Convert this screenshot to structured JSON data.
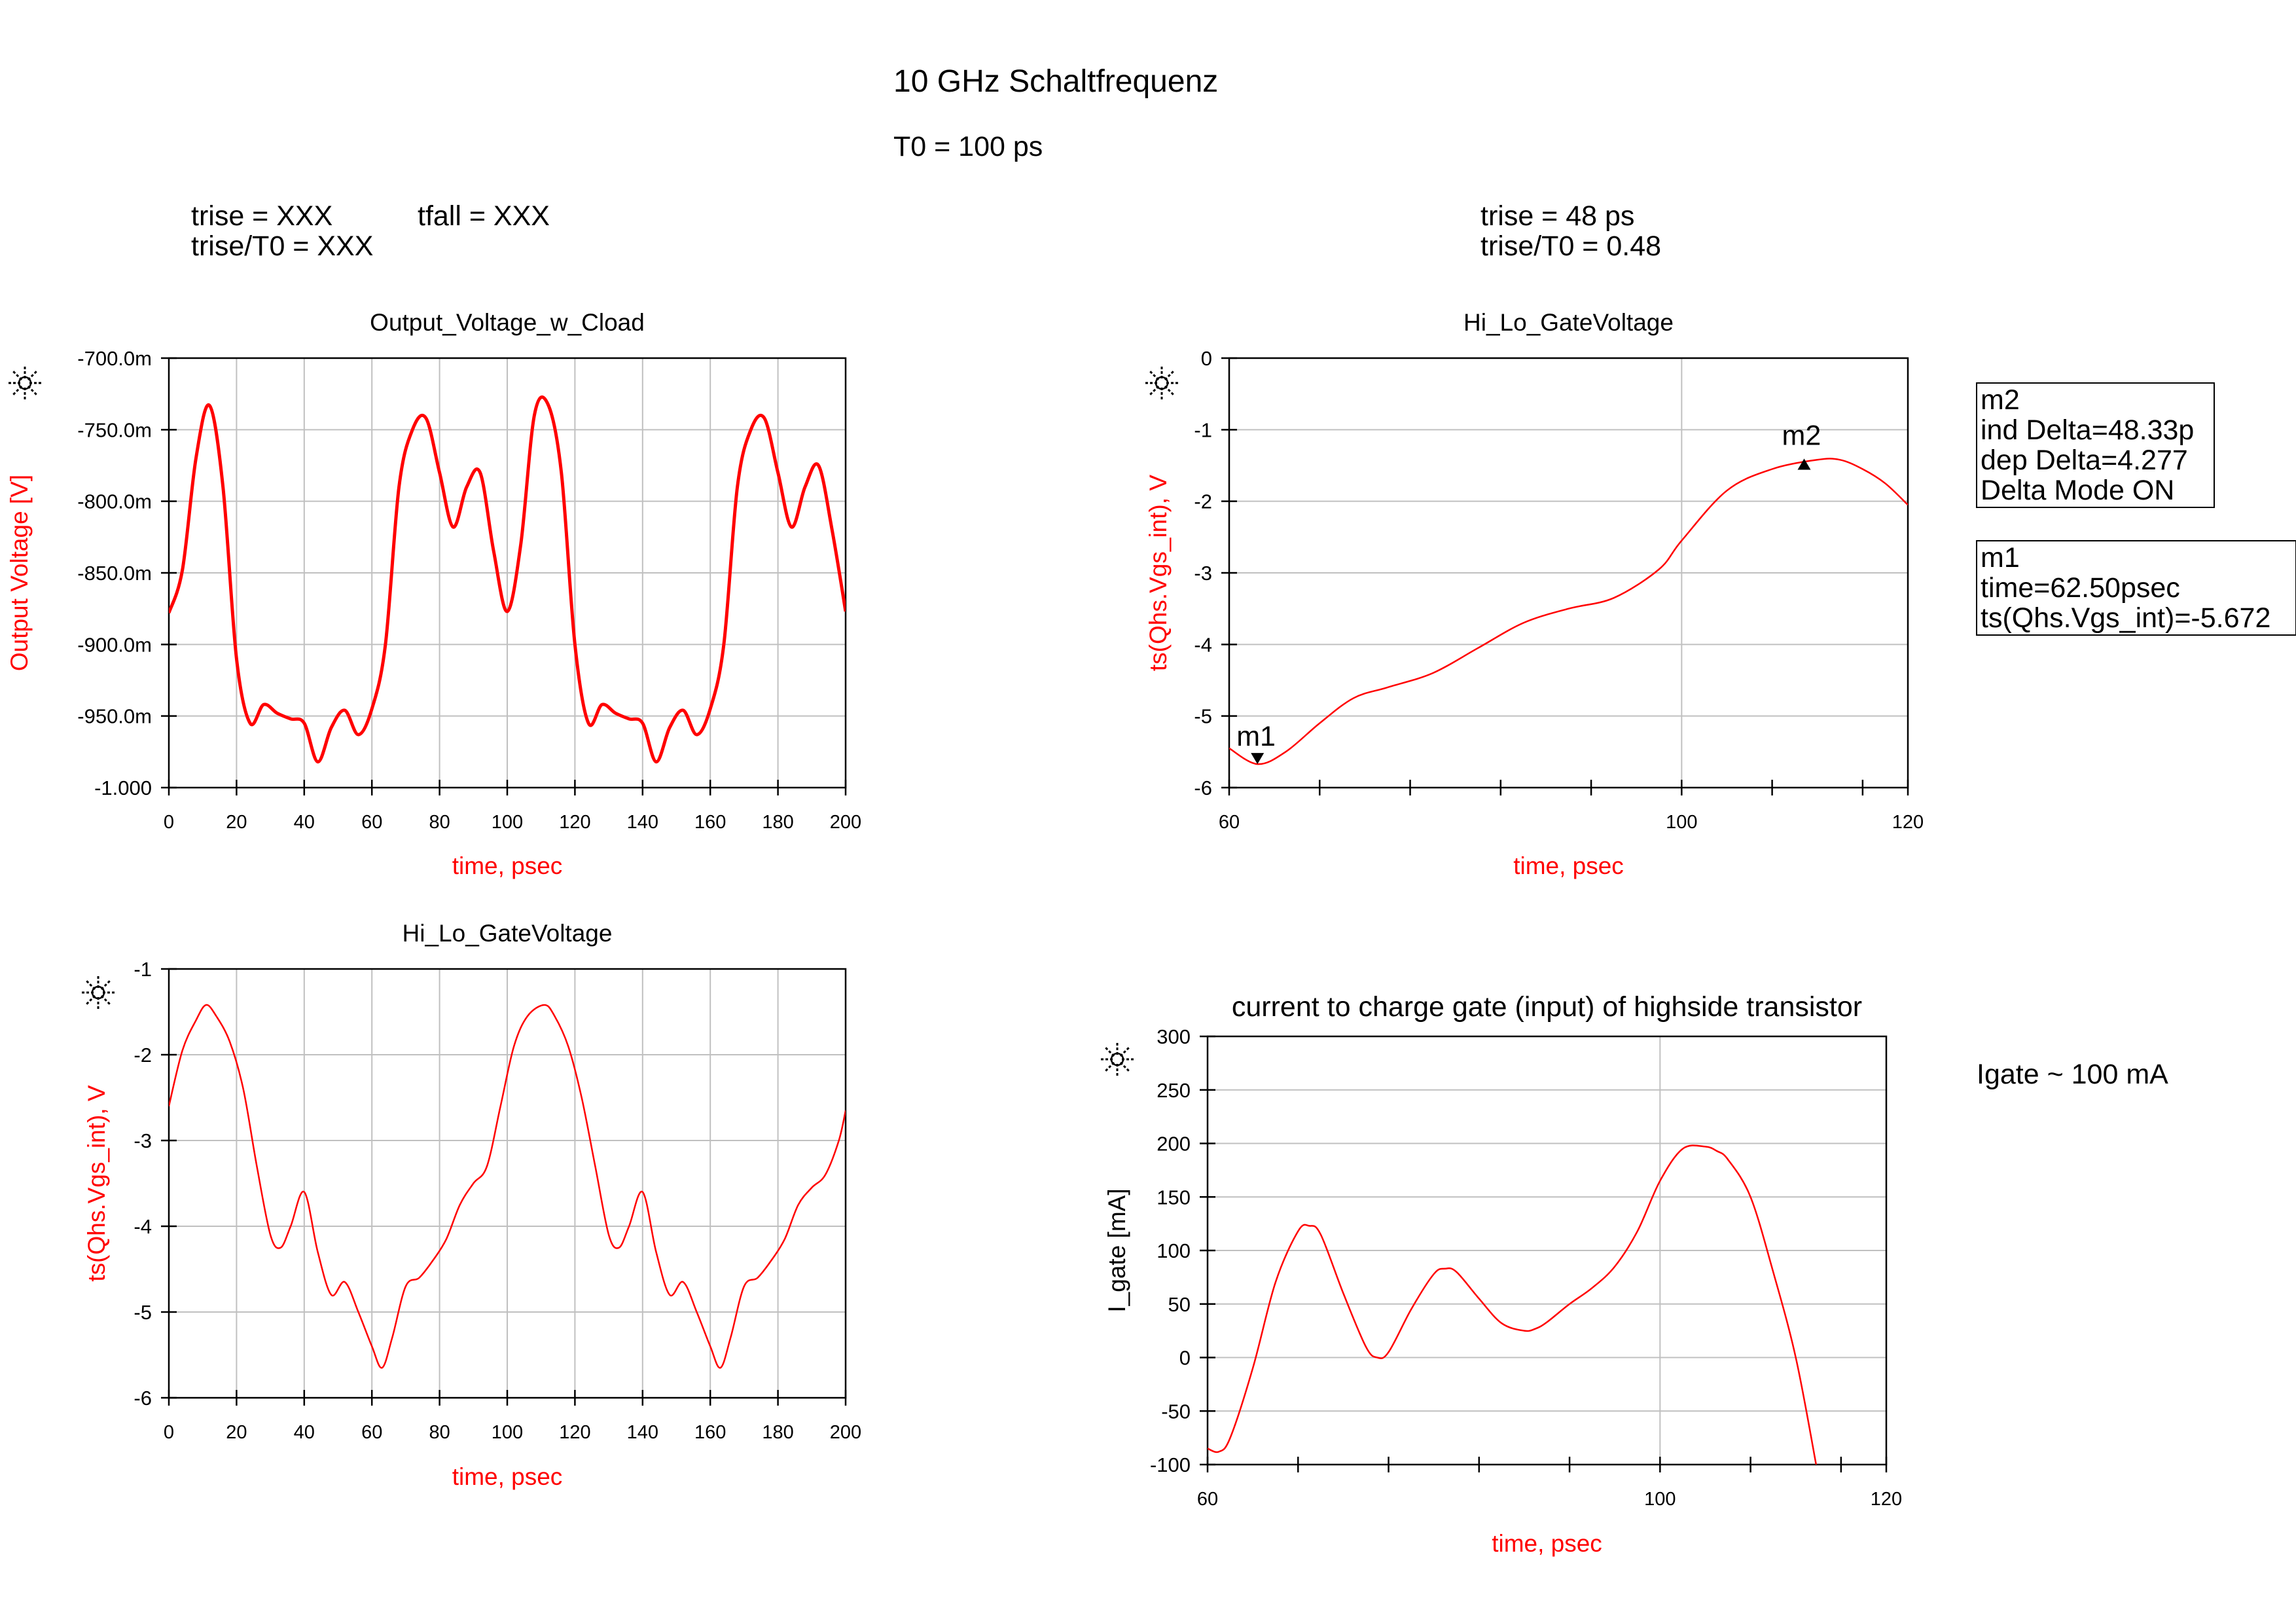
{
  "page": {
    "title": "10 GHz Schaltfrequenz",
    "period": "T0 = 100 ps",
    "left_notes": {
      "trise": "trise = XXX",
      "tfall": "tfall = XXX",
      "ratio": "trise/T0 = XXX"
    },
    "right_notes": {
      "trise": "trise = 48 ps",
      "ratio": "trise/T0 = 0.48"
    },
    "igate_note": "Igate ~ 100 mA"
  },
  "markers": {
    "m2_box": [
      "m2",
      "ind Delta=48.33p",
      "dep Delta=4.277",
      "Delta Mode ON"
    ],
    "m1_box": [
      "m1",
      "time=62.50psec",
      "ts(Qhs.Vgs_int)=-5.672"
    ]
  },
  "colors": {
    "trace": "#ff0000",
    "axis_label": "#ff0000",
    "grid": "#c0c0c0",
    "frame": "#000000"
  },
  "icon": "agilent-star-icon",
  "chart_data": [
    {
      "id": "output_voltage",
      "type": "line",
      "title": "Output_Voltage_w_Cload",
      "xlabel": "time, psec",
      "ylabel": "Output Voltage [V]",
      "xlim": [
        0,
        200
      ],
      "ylim": [
        -1.0,
        -0.7
      ],
      "xticks": [
        0,
        20,
        40,
        60,
        80,
        100,
        120,
        140,
        160,
        180,
        200
      ],
      "xticklabels": [
        "0",
        "20",
        "40",
        "60",
        "80",
        "100",
        "120",
        "140",
        "160",
        "180",
        "200"
      ],
      "yticks": [
        -0.7,
        -0.75,
        -0.8,
        -0.85,
        -0.9,
        -0.95,
        -1.0
      ],
      "yticklabels": [
        "-700.0m",
        "-750.0m",
        "-800.0m",
        "-850.0m",
        "-900.0m",
        "-950.0m",
        "-1.000"
      ],
      "grid": true,
      "series": [
        {
          "color": "#ff0000",
          "stroke_weight": "bold",
          "x": [
            0,
            4,
            8,
            12,
            16,
            20,
            24,
            28,
            32,
            36,
            40,
            44,
            48,
            52,
            56,
            60,
            64,
            68,
            72,
            76,
            80,
            84,
            88,
            92,
            96,
            100,
            104,
            108,
            112,
            116,
            120,
            124,
            128,
            132,
            136,
            140,
            144,
            148,
            152,
            156,
            160,
            164,
            168,
            172,
            176,
            180,
            184,
            188,
            192,
            196,
            200
          ],
          "y": [
            -0.878,
            -0.848,
            -0.77,
            -0.733,
            -0.79,
            -0.91,
            -0.955,
            -0.942,
            -0.948,
            -0.952,
            -0.955,
            -0.982,
            -0.958,
            -0.946,
            -0.963,
            -0.945,
            -0.9,
            -0.79,
            -0.75,
            -0.742,
            -0.78,
            -0.818,
            -0.79,
            -0.78,
            -0.835,
            -0.877,
            -0.83,
            -0.74,
            -0.732,
            -0.78,
            -0.9,
            -0.955,
            -0.942,
            -0.948,
            -0.952,
            -0.955,
            -0.982,
            -0.958,
            -0.946,
            -0.963,
            -0.945,
            -0.9,
            -0.79,
            -0.75,
            -0.742,
            -0.78,
            -0.818,
            -0.79,
            -0.775,
            -0.82,
            -0.877
          ]
        }
      ]
    },
    {
      "id": "gate_zoom",
      "type": "line",
      "title": "Hi_Lo_GateVoltage",
      "xlabel": "time, psec",
      "ylabel": "ts(Qhs.Vgs_int), V",
      "xlim": [
        60,
        120
      ],
      "ylim": [
        -6,
        0
      ],
      "xticks": [
        60,
        100,
        120
      ],
      "xticklabels": [
        "60",
        "100",
        "120"
      ],
      "xminorticks": [
        60,
        68,
        76,
        84,
        92,
        100,
        108,
        116,
        120
      ],
      "yticks": [
        0,
        -1,
        -2,
        -3,
        -4,
        -5,
        -6
      ],
      "yticklabels": [
        "0",
        "-1",
        "-2",
        "-3",
        "-4",
        "-5",
        "-6"
      ],
      "grid": true,
      "series": [
        {
          "color": "#ff0000",
          "x": [
            60,
            62.5,
            65,
            68,
            71,
            74,
            78,
            82,
            86,
            90,
            94,
            98,
            100,
            104,
            108,
            112,
            114,
            116,
            118,
            120
          ],
          "y": [
            -5.45,
            -5.672,
            -5.5,
            -5.1,
            -4.75,
            -4.6,
            -4.4,
            -4.05,
            -3.7,
            -3.5,
            -3.35,
            -2.95,
            -2.55,
            -1.85,
            -1.55,
            -1.42,
            -1.42,
            -1.55,
            -1.75,
            -2.05
          ]
        }
      ],
      "markers": [
        {
          "name": "m1",
          "x": 62.5,
          "y": -5.672,
          "direction": "down"
        },
        {
          "name": "m2",
          "x": 110.83,
          "y": -1.395,
          "direction": "up"
        }
      ]
    },
    {
      "id": "gate_full",
      "type": "line",
      "title": "Hi_Lo_GateVoltage",
      "xlabel": "time, psec",
      "ylabel": "ts(Qhs.Vgs_int), V",
      "xlim": [
        0,
        200
      ],
      "ylim": [
        -6,
        -1
      ],
      "xticks": [
        0,
        20,
        40,
        60,
        80,
        100,
        120,
        140,
        160,
        180,
        200
      ],
      "xticklabels": [
        "0",
        "20",
        "40",
        "60",
        "80",
        "100",
        "120",
        "140",
        "160",
        "180",
        "200"
      ],
      "yticks": [
        -1,
        -2,
        -3,
        -4,
        -5,
        -6
      ],
      "yticklabels": [
        "-1",
        "-2",
        "-3",
        "-4",
        "-5",
        "-6"
      ],
      "grid": true,
      "series": [
        {
          "color": "#ff0000",
          "x": [
            0,
            4,
            8,
            11,
            14,
            18,
            22,
            26,
            30,
            33,
            36,
            40,
            44,
            48,
            52,
            56,
            60,
            63,
            66,
            70,
            74,
            78,
            82,
            86,
            90,
            94,
            98,
            102,
            106,
            111,
            114,
            118,
            122,
            126,
            130,
            133,
            136,
            140,
            144,
            148,
            152,
            156,
            160,
            163,
            166,
            170,
            174,
            178,
            182,
            186,
            190,
            194,
            198,
            200
          ],
          "y": [
            -2.6,
            -1.95,
            -1.6,
            -1.42,
            -1.55,
            -1.85,
            -2.4,
            -3.3,
            -4.1,
            -4.25,
            -4.0,
            -3.6,
            -4.3,
            -4.8,
            -4.65,
            -5.0,
            -5.4,
            -5.65,
            -5.3,
            -4.7,
            -4.6,
            -4.4,
            -4.15,
            -3.75,
            -3.5,
            -3.3,
            -2.6,
            -1.9,
            -1.55,
            -1.42,
            -1.55,
            -1.9,
            -2.5,
            -3.3,
            -4.1,
            -4.25,
            -4.0,
            -3.6,
            -4.3,
            -4.8,
            -4.65,
            -5.0,
            -5.4,
            -5.65,
            -5.3,
            -4.7,
            -4.6,
            -4.4,
            -4.15,
            -3.75,
            -3.55,
            -3.4,
            -3.0,
            -2.65
          ]
        }
      ]
    },
    {
      "id": "igate",
      "type": "line",
      "title": "current to charge gate (input) of highside transistor",
      "xlabel": "time, psec",
      "ylabel": "I_gate [mA]",
      "xlim": [
        60,
        120
      ],
      "ylim": [
        -100,
        300
      ],
      "xticks": [
        60,
        100,
        120
      ],
      "xticklabels": [
        "60",
        "100",
        "120"
      ],
      "xminorticks": [
        60,
        68,
        76,
        84,
        92,
        100,
        108,
        116,
        120
      ],
      "yticks": [
        300,
        250,
        200,
        150,
        100,
        50,
        0,
        -50,
        -100
      ],
      "yticklabels": [
        "300",
        "250",
        "200",
        "150",
        "100",
        "50",
        "0",
        "-50",
        "-100"
      ],
      "grid": true,
      "series": [
        {
          "color": "#ff0000",
          "x": [
            60,
            61,
            62,
            64,
            66,
            68,
            69,
            70,
            72,
            74,
            75,
            76,
            78,
            80,
            81,
            82,
            84,
            86,
            88,
            89,
            90,
            92,
            94,
            96,
            98,
            100,
            102,
            104,
            105,
            106,
            108,
            110,
            112,
            113.8
          ],
          "y": [
            -85,
            -88,
            -75,
            -10,
            70,
            118,
            123,
            115,
            60,
            10,
            0,
            5,
            45,
            78,
            83,
            80,
            55,
            32,
            25,
            27,
            33,
            50,
            65,
            85,
            118,
            165,
            195,
            197,
            193,
            185,
            150,
            80,
            0,
            -100
          ]
        }
      ]
    }
  ]
}
